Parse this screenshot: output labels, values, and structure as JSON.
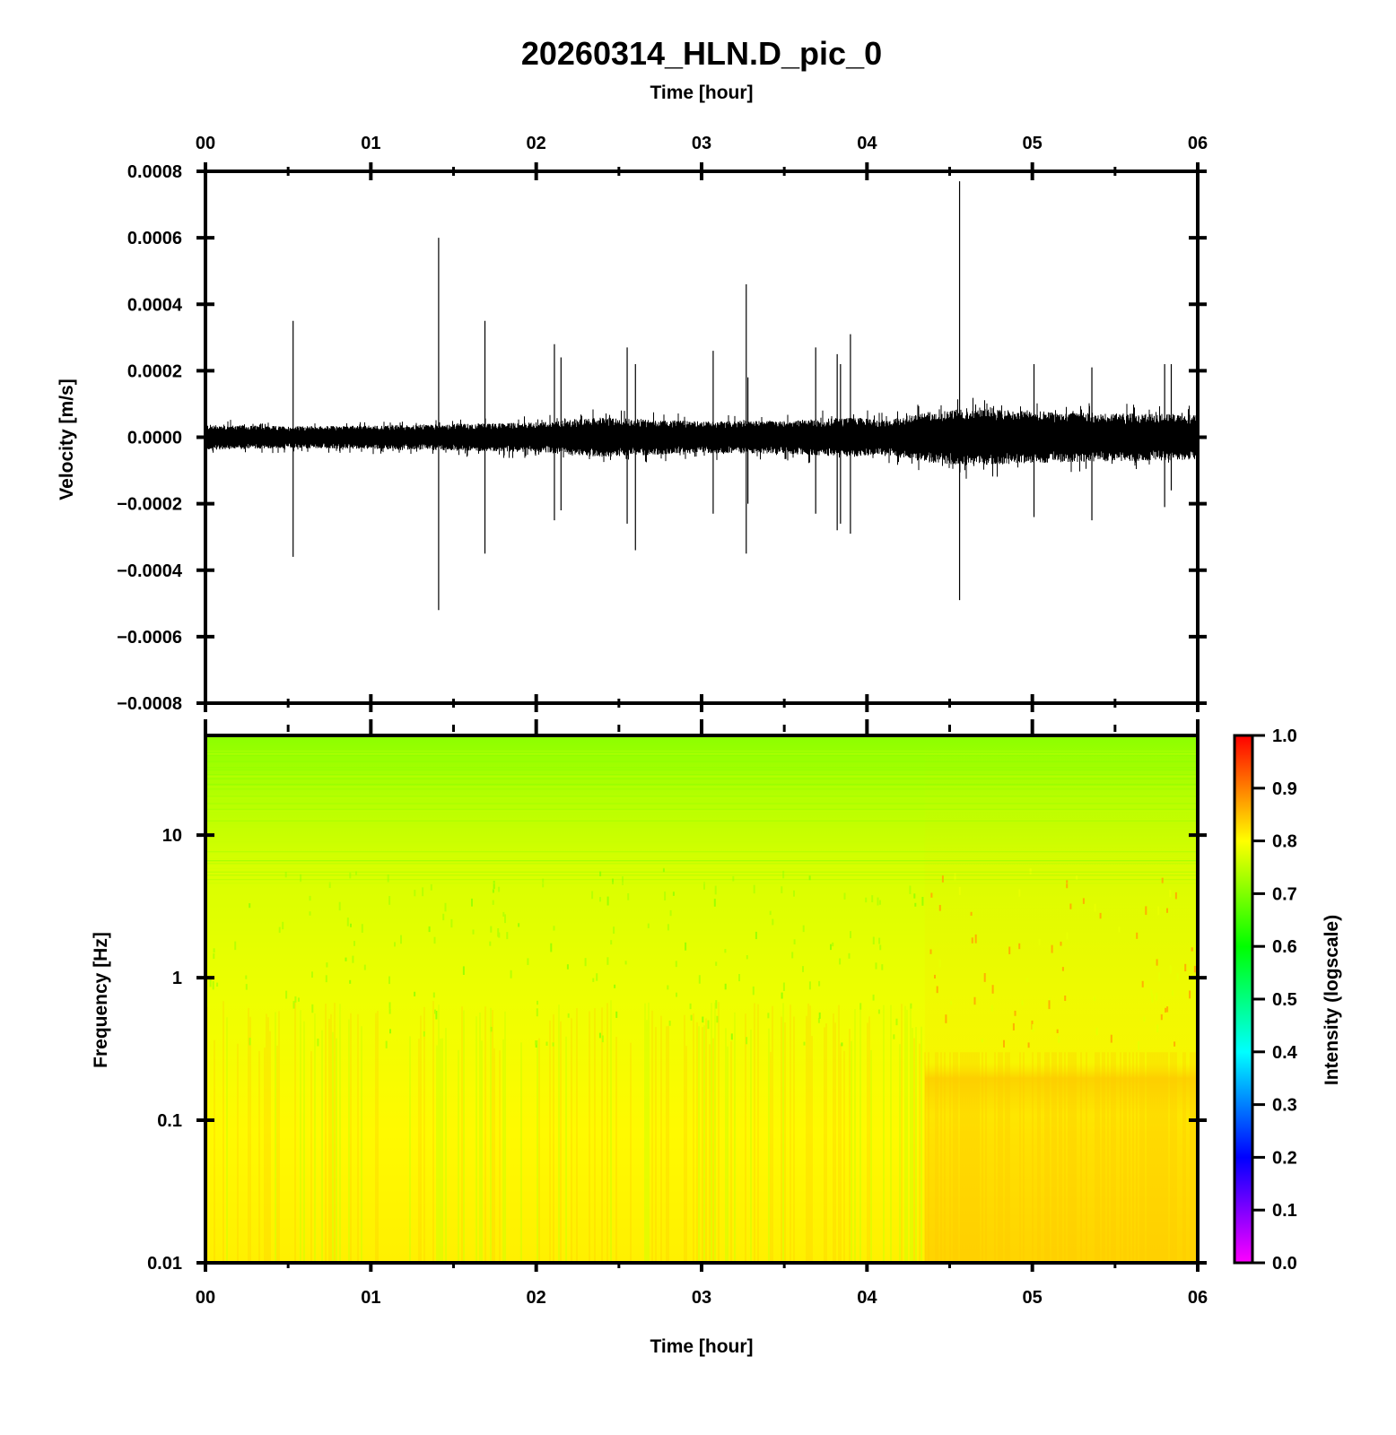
{
  "chart_data": [
    {
      "type": "line",
      "title": "20260314_HLN.D_pic_0",
      "xlabel": "Time [hour]",
      "ylabel": "Velocity [m/s]",
      "x_ticks": [
        "00",
        "01",
        "02",
        "03",
        "04",
        "05",
        "06"
      ],
      "xlim": [
        0,
        6
      ],
      "y_ticks": [
        "0.0008",
        "0.0006",
        "0.0004",
        "0.0002",
        "0.0000",
        "−0.0002",
        "−0.0004",
        "−0.0006",
        "−0.0008"
      ],
      "ylim": [
        -0.0008,
        0.0008
      ],
      "grid": false,
      "series": [
        {
          "color": "#000000",
          "noise_envelope": {
            "x": [
              0,
              0.5,
              1.0,
              1.5,
              2.0,
              2.4,
              2.6,
              3.0,
              3.5,
              3.9,
              4.1,
              4.35,
              4.6,
              4.9,
              5.2,
              5.5,
              5.8,
              6.0
            ],
            "half_amplitude": [
              3.8e-05,
              3.3e-05,
              3.5e-05,
              4e-05,
              4.5e-05,
              6e-05,
              5.5e-05,
              4.8e-05,
              5e-05,
              6e-05,
              5.2e-05,
              7.5e-05,
              8.8e-05,
              8e-05,
              7.5e-05,
              7.2e-05,
              7e-05,
              6.8e-05
            ]
          },
          "spikes": [
            {
              "x": 0.53,
              "max": 0.00035,
              "min": -0.00036
            },
            {
              "x": 1.41,
              "max": 0.0006,
              "min": -0.00052
            },
            {
              "x": 1.69,
              "max": 0.00035,
              "min": -0.00035
            },
            {
              "x": 2.11,
              "max": 0.00028,
              "min": -0.00025
            },
            {
              "x": 2.15,
              "max": 0.00024,
              "min": -0.00022
            },
            {
              "x": 2.55,
              "max": 0.00027,
              "min": -0.00026
            },
            {
              "x": 2.6,
              "max": 0.00022,
              "min": -0.00034
            },
            {
              "x": 3.07,
              "max": 0.00026,
              "min": -0.00023
            },
            {
              "x": 3.27,
              "max": 0.00046,
              "min": -0.00035
            },
            {
              "x": 3.28,
              "max": 0.00018,
              "min": -0.0002
            },
            {
              "x": 3.69,
              "max": 0.00027,
              "min": -0.00023
            },
            {
              "x": 3.82,
              "max": 0.00025,
              "min": -0.00028
            },
            {
              "x": 3.84,
              "max": 0.00022,
              "min": -0.00026
            },
            {
              "x": 3.9,
              "max": 0.00031,
              "min": -0.00029
            },
            {
              "x": 4.56,
              "max": 0.00077,
              "min": -0.00049
            },
            {
              "x": 5.01,
              "max": 0.00022,
              "min": -0.00024
            },
            {
              "x": 5.36,
              "max": 0.00021,
              "min": -0.00025
            },
            {
              "x": 5.8,
              "max": 0.00022,
              "min": -0.00021
            },
            {
              "x": 5.84,
              "max": 0.00022,
              "min": -0.00016
            }
          ]
        }
      ]
    },
    {
      "type": "heatmap",
      "xlabel": "Time [hour]",
      "ylabel": "Frequency [Hz]",
      "x_ticks": [
        "00",
        "01",
        "02",
        "03",
        "04",
        "05",
        "06"
      ],
      "xlim": [
        0,
        6
      ],
      "y_scale": "log",
      "y_ticks": [
        "10",
        "1",
        "0.1",
        "0.01"
      ],
      "ylim": [
        0.01,
        50
      ],
      "colorbar": {
        "label": "Intensity (logscale)",
        "ticks": [
          "1.0",
          "0.9",
          "0.8",
          "0.7",
          "0.6",
          "0.5",
          "0.4",
          "0.3",
          "0.2",
          "0.1",
          "0.0"
        ],
        "range": [
          0.0,
          1.0
        ],
        "colormap": [
          "#ff00ff",
          "#0000ff",
          "#00ffff",
          "#00ff00",
          "#ffff00",
          "#ff0000"
        ]
      },
      "intensity_profile": {
        "frequency_hz": [
          50,
          20,
          10,
          3,
          1,
          0.4,
          0.25,
          0.1,
          0.01
        ],
        "early_intensity": [
          0.64,
          0.7,
          0.73,
          0.76,
          0.78,
          0.76,
          0.79,
          0.8,
          0.81
        ],
        "late_intensity": [
          0.64,
          0.7,
          0.74,
          0.78,
          0.8,
          0.83,
          0.87,
          0.86,
          0.87
        ],
        "late_start_hour": 4.35
      }
    }
  ]
}
